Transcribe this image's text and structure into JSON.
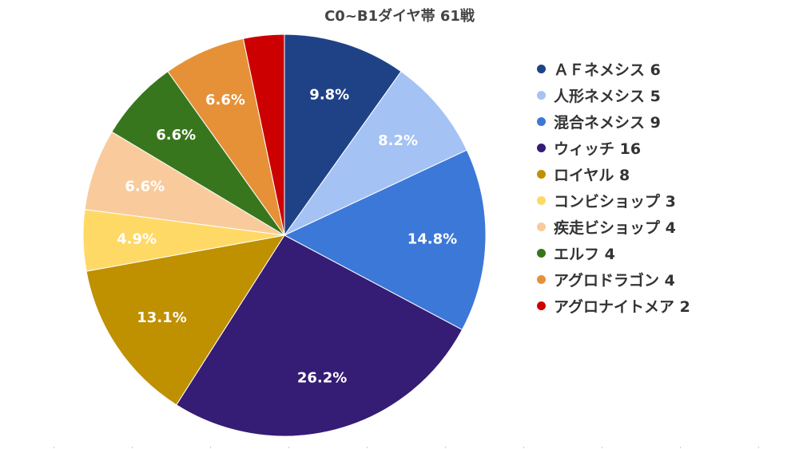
{
  "chart_data": {
    "type": "pie",
    "title": "C0~B1ダイヤ帯 61戦",
    "slices": [
      {
        "legend": "ＡＦネメシス 6",
        "value": 6,
        "label": "9.8%",
        "color": "#1f4287"
      },
      {
        "legend": "人形ネメシス 5",
        "value": 5,
        "label": "8.2%",
        "color": "#a4c2f4"
      },
      {
        "legend": "混合ネメシス 9",
        "value": 9,
        "label": "14.8%",
        "color": "#3c78d8"
      },
      {
        "legend": "ウィッチ 16",
        "value": 16,
        "label": "26.2%",
        "color": "#351c75"
      },
      {
        "legend": "ロイヤル 8",
        "value": 8,
        "label": "13.1%",
        "color": "#bf9000"
      },
      {
        "legend": "コンビショップ 3",
        "value": 3,
        "label": "4.9%",
        "color": "#ffd966"
      },
      {
        "legend": "疾走ビショップ 4",
        "value": 4,
        "label": "6.6%",
        "color": "#f9cb9c"
      },
      {
        "legend": "エルフ 4",
        "value": 4,
        "label": "6.6%",
        "color": "#38761d"
      },
      {
        "legend": "アグロドラゴン 4",
        "value": 4,
        "label": "6.6%",
        "color": "#e69138"
      },
      {
        "legend": "アグロナイトメア 2",
        "value": 2,
        "label": "",
        "color": "#cc0000"
      }
    ],
    "legend_position": "right"
  }
}
